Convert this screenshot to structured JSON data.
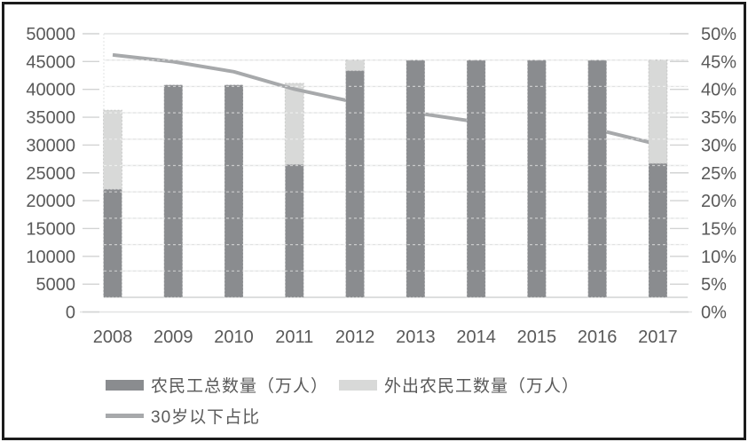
{
  "chart_data": {
    "type": "bar",
    "subtype": "stacked-bars-with-line-overlay",
    "title": "",
    "categories": [
      "2008",
      "2009",
      "2010",
      "2011",
      "2012",
      "2013",
      "2014",
      "2015",
      "2016",
      "2017"
    ],
    "series": [
      {
        "name": "农民工总数量（万人）",
        "type": "bar",
        "role": "stack-base",
        "axis": "left",
        "values": [
          20500,
          40300,
          40300,
          25200,
          43000,
          45000,
          45000,
          45000,
          45000,
          25400
        ],
        "color": "#8a8c8f"
      },
      {
        "name": "外出农民工数量（万人）",
        "type": "bar",
        "role": "stack-top",
        "axis": "left",
        "values": [
          15000,
          0,
          0,
          15400,
          2000,
          0,
          0,
          0,
          0,
          19600
        ],
        "color": "#d8d9d8"
      },
      {
        "name": "30岁以下占比",
        "type": "line",
        "axis": "right",
        "values": [
          46,
          44.7,
          42.8,
          39.5,
          37,
          35,
          33.3,
          null,
          31.8,
          29
        ],
        "drawn_segments": [
          [
            0,
            4
          ],
          [
            5,
            6
          ],
          [
            8,
            9
          ]
        ],
        "color": "#a7a9ab"
      }
    ],
    "y_axis_left": {
      "min": 0,
      "max": 50000,
      "step": 5000,
      "labels": [
        "50000",
        "45000",
        "40000",
        "35000",
        "30000",
        "25000",
        "20000",
        "15000",
        "10000",
        "5000",
        "0"
      ]
    },
    "y_axis_right": {
      "min": 0,
      "max": 50,
      "step": 5,
      "labels": [
        "50%",
        "45%",
        "40%",
        "35%",
        "30%",
        "25%",
        "20%",
        "15%",
        "10%",
        "5%",
        "0%"
      ]
    },
    "grid": "horizontal",
    "legend_position": "bottom-left"
  },
  "legend": {
    "total_label": "农民工总数量（万人）",
    "outgoing_label": "外出农民工数量（万人）",
    "under30_label": "30岁以下占比"
  },
  "colors": {
    "bar_dark": "#8a8c8f",
    "bar_light": "#d8d9d8",
    "line": "#a7a9ab",
    "gridline": "#e2e3e3",
    "axis_line": "#d2d3d3",
    "label_text": "#595959",
    "border": "#1c1c1c"
  }
}
